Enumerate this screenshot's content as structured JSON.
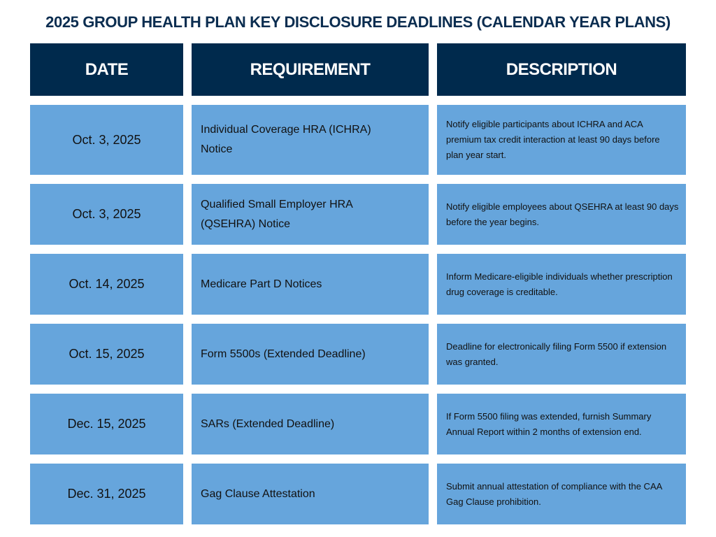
{
  "title": "2025 GROUP HEALTH PLAN KEY DISCLOSURE DEADLINES (CALENDAR YEAR PLANS)",
  "headers": [
    "DATE",
    "REQUIREMENT",
    "DESCRIPTION"
  ],
  "colors": {
    "header_bg": "#002a4d",
    "row_bg": "#66a5dc",
    "title": "#0b2d50"
  },
  "rows": [
    {
      "date": "Oct. 3, 2025",
      "requirement": "Individual Coverage HRA (ICHRA) Notice",
      "description": "Notify eligible participants about ICHRA and ACA premium tax credit interaction at least 90 days before plan year start."
    },
    {
      "date": "Oct. 3, 2025",
      "requirement": "Qualified Small Employer HRA (QSEHRA) Notice",
      "description": "Notify eligible employees about QSEHRA at least 90 days before the year begins."
    },
    {
      "date": "Oct. 14, 2025",
      "requirement": "Medicare Part D Notices",
      "description": "Inform Medicare-eligible individuals whether prescription drug coverage is creditable."
    },
    {
      "date": "Oct. 15, 2025",
      "requirement": "Form 5500s (Extended Deadline)",
      "description": "Deadline for electronically filing Form 5500 if extension was granted."
    },
    {
      "date": "Dec. 15, 2025",
      "requirement": "SARs (Extended Deadline)",
      "description": "If Form 5500 filing was extended, furnish Summary Annual Report within 2 months of extension end."
    },
    {
      "date": "Dec. 31, 2025",
      "requirement": "Gag Clause Attestation",
      "description": "Submit annual attestation of compliance with the CAA Gag Clause prohibition."
    }
  ]
}
